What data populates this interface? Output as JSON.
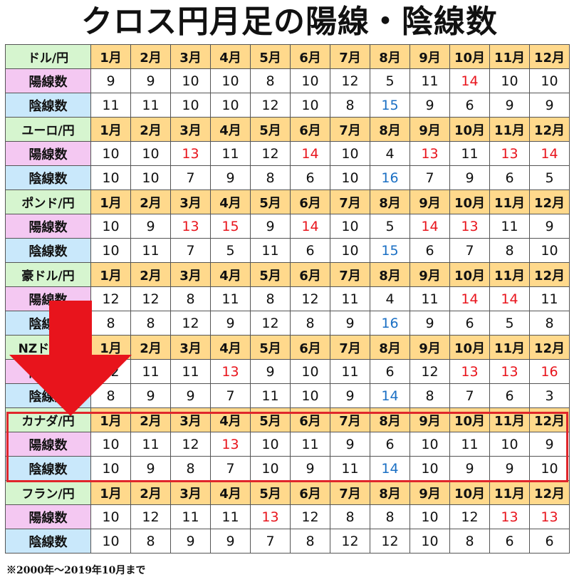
{
  "title": "クロス円月足の陽線・陰線数",
  "months": [
    "1月",
    "2月",
    "3月",
    "4月",
    "5月",
    "6月",
    "7月",
    "8月",
    "9月",
    "10月",
    "11月",
    "12月"
  ],
  "row_labels": {
    "yosen": "陽線数",
    "insen": "陰線数"
  },
  "pairs": [
    {
      "name": "ドル/円",
      "yosen": [
        "9",
        "9",
        "10",
        "10",
        "8",
        "10",
        "12",
        "5",
        "11",
        "14",
        "10",
        "10"
      ],
      "insen": [
        "11",
        "11",
        "10",
        "10",
        "12",
        "10",
        "8",
        "15",
        "9",
        "6",
        "9",
        "9"
      ]
    },
    {
      "name": "ユーロ/円",
      "yosen": [
        "10",
        "10",
        "13",
        "11",
        "12",
        "14",
        "10",
        "4",
        "13",
        "11",
        "13",
        "14"
      ],
      "insen": [
        "10",
        "10",
        "7",
        "9",
        "8",
        "6",
        "10",
        "16",
        "7",
        "9",
        "6",
        "5"
      ]
    },
    {
      "name": "ポンド/円",
      "yosen": [
        "10",
        "9",
        "13",
        "15",
        "9",
        "14",
        "10",
        "5",
        "14",
        "13",
        "11",
        "9"
      ],
      "insen": [
        "10",
        "11",
        "7",
        "5",
        "11",
        "6",
        "10",
        "15",
        "6",
        "7",
        "8",
        "10"
      ]
    },
    {
      "name": "豪ドル/円",
      "yosen": [
        "12",
        "12",
        "8",
        "11",
        "8",
        "12",
        "11",
        "4",
        "11",
        "14",
        "14",
        "11"
      ],
      "insen": [
        "8",
        "8",
        "12",
        "9",
        "12",
        "8",
        "9",
        "16",
        "9",
        "6",
        "5",
        "8"
      ]
    },
    {
      "name": "NZドル/円",
      "yosen": [
        "12",
        "11",
        "11",
        "13",
        "9",
        "10",
        "11",
        "6",
        "12",
        "13",
        "13",
        "16"
      ],
      "insen": [
        "8",
        "9",
        "9",
        "7",
        "11",
        "10",
        "9",
        "14",
        "8",
        "7",
        "6",
        "3"
      ]
    },
    {
      "name": "カナダ/円",
      "yosen": [
        "10",
        "11",
        "12",
        "13",
        "10",
        "11",
        "9",
        "6",
        "10",
        "11",
        "10",
        "9"
      ],
      "insen": [
        "10",
        "9",
        "8",
        "7",
        "10",
        "9",
        "11",
        "14",
        "10",
        "9",
        "9",
        "10"
      ]
    },
    {
      "name": "フラン/円",
      "yosen": [
        "10",
        "12",
        "11",
        "11",
        "13",
        "12",
        "8",
        "8",
        "10",
        "12",
        "13",
        "13"
      ],
      "insen": [
        "10",
        "8",
        "9",
        "9",
        "7",
        "8",
        "12",
        "12",
        "10",
        "8",
        "6",
        "6"
      ]
    }
  ],
  "highlight_threshold": 13,
  "colors": {
    "header_green": "#d6f5cf",
    "month_orange": "#ffd98c",
    "yosen_pink": "#f4c8f2",
    "insen_blue": "#c9e8fb",
    "high_value_red": "#e8141c",
    "high_value_blue": "#1a6fc4",
    "highlight_box": "#e0262b",
    "arrow": "#e8141c"
  },
  "arrow_icon": "down-arrow-icon",
  "footnote": "※2000年～2019年10月まで"
}
